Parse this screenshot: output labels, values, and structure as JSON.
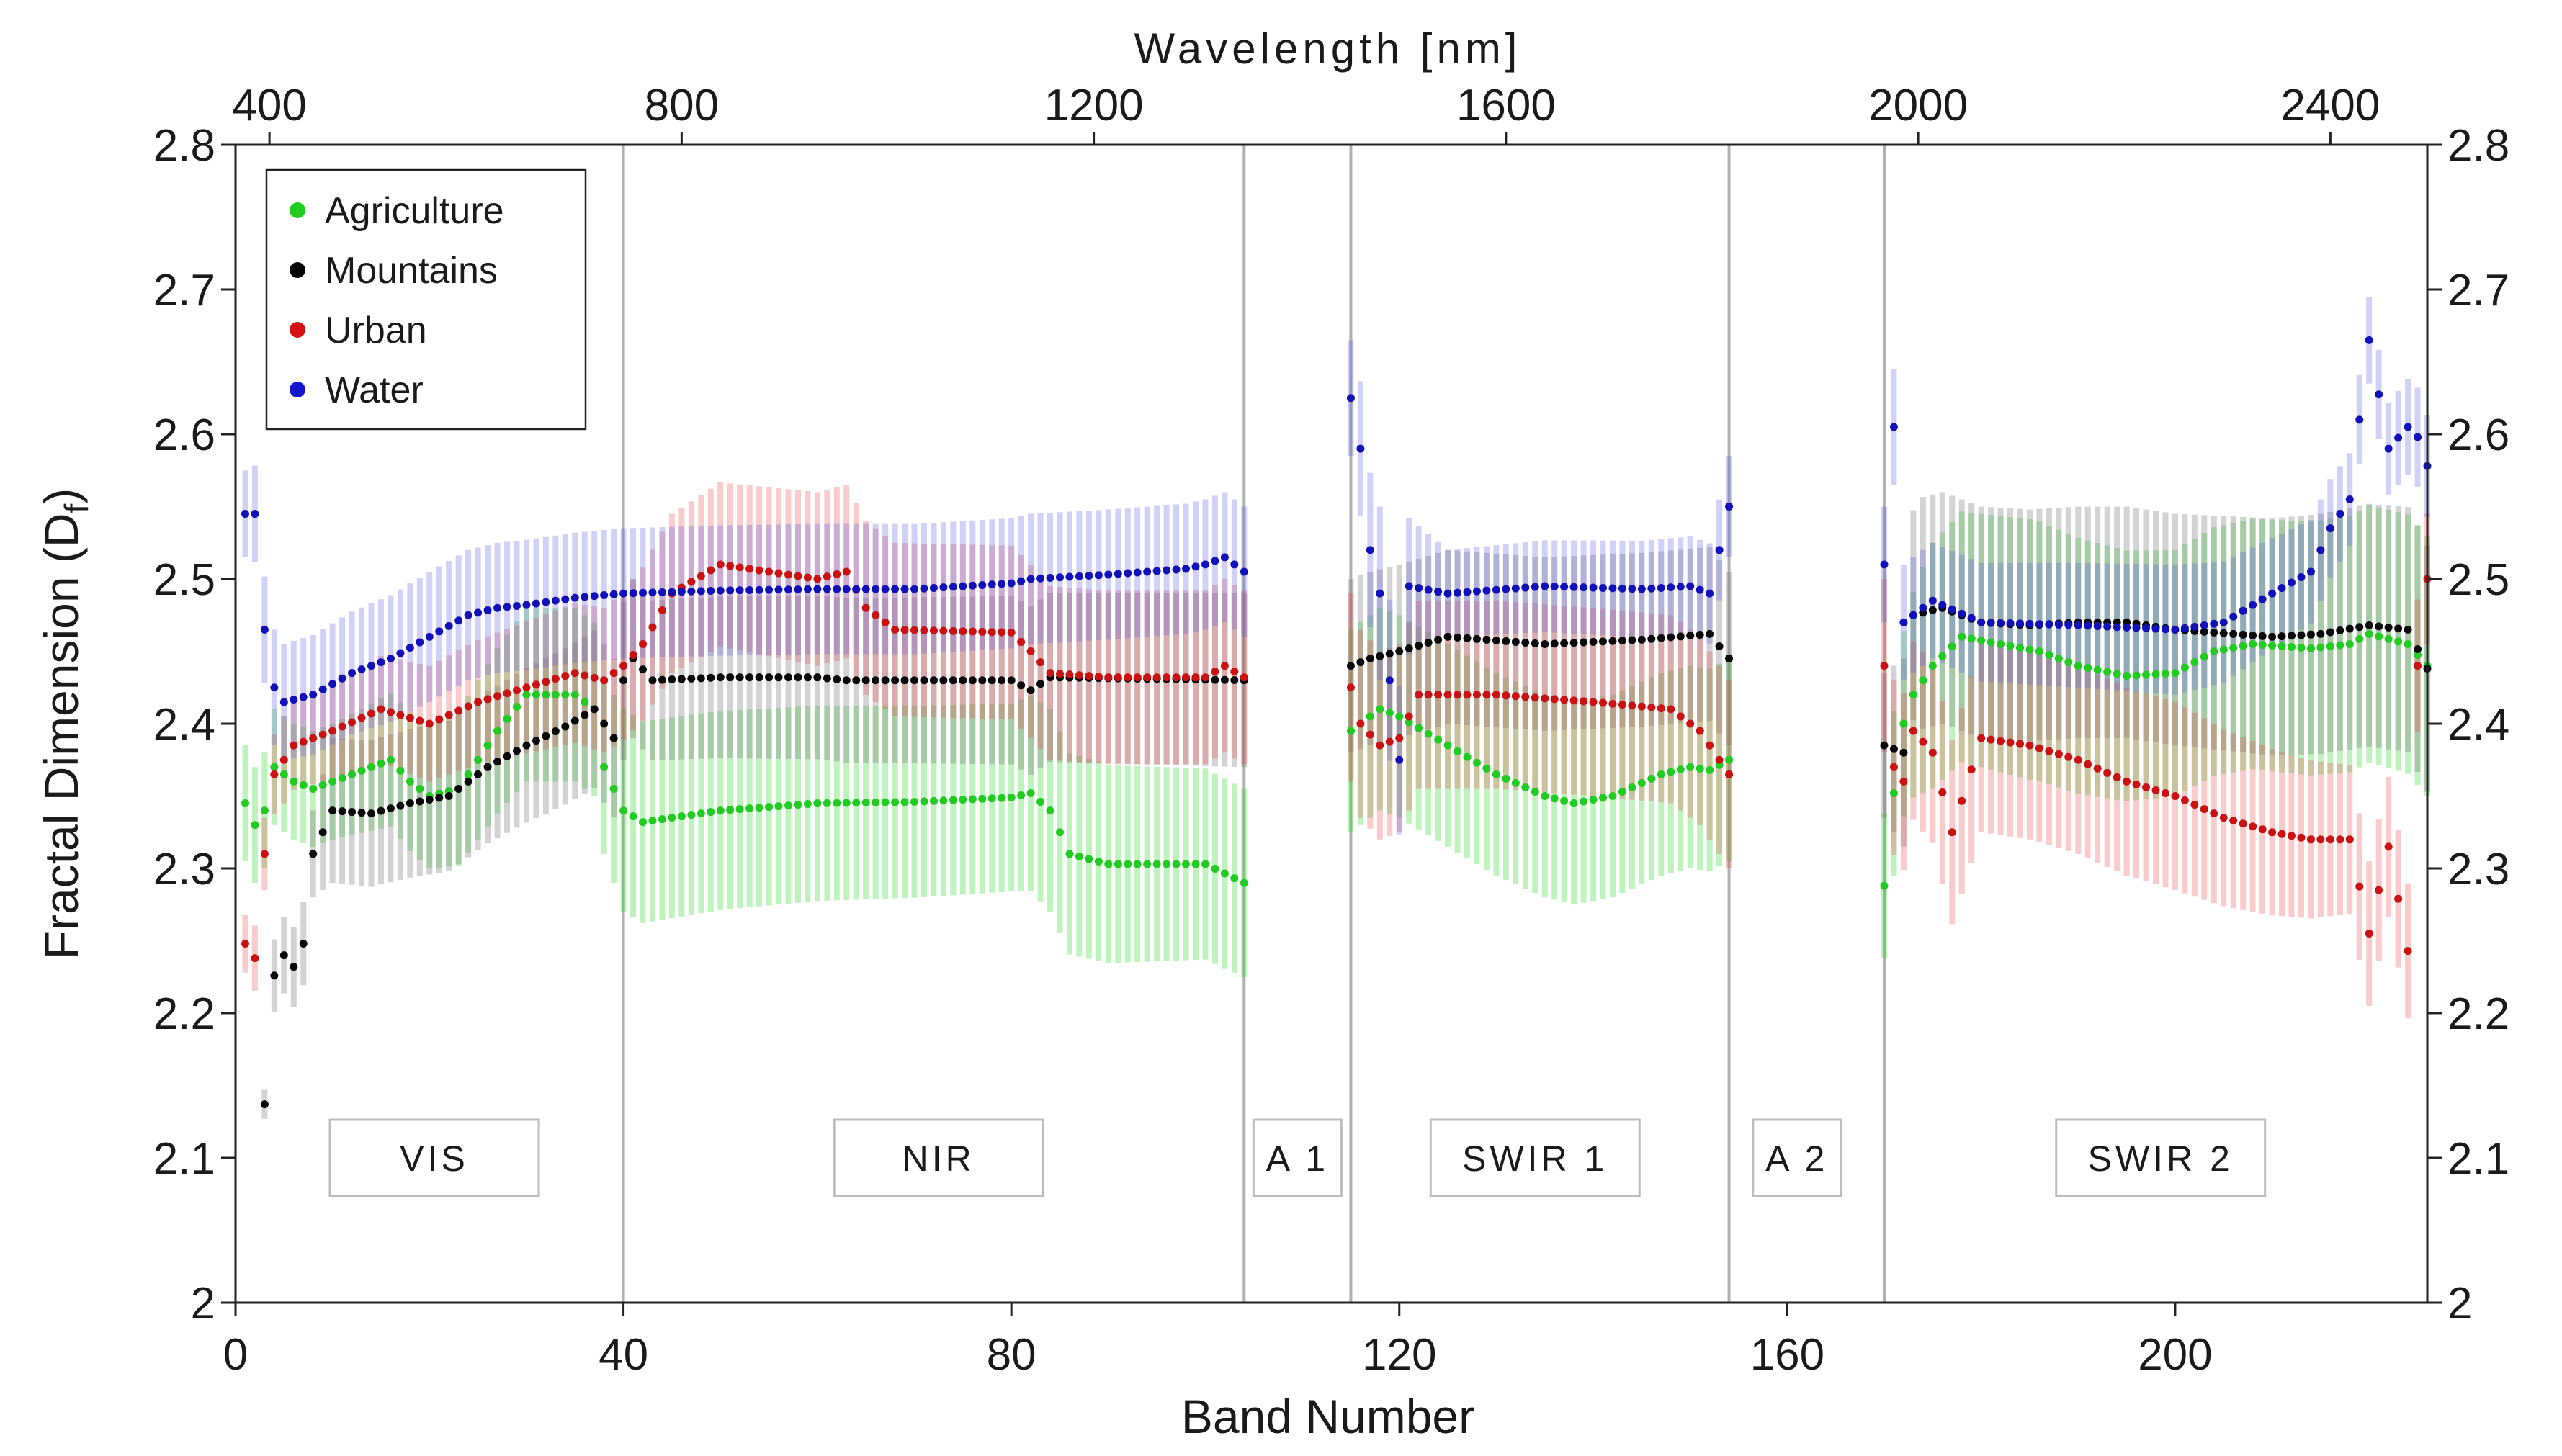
{
  "chart_data": {
    "type": "scatter",
    "title": "",
    "top_axis_title": "Wavelength [nm]",
    "xlabel": "Band Number",
    "ylabel_main": "Fractal Dimension (D",
    "ylabel_sub": "f",
    "ylabel_end": ")",
    "xlim": [
      0,
      226
    ],
    "ylim": [
      2.0,
      2.8
    ],
    "x_ticks": [
      {
        "value": 0,
        "label": "0"
      },
      {
        "value": 40,
        "label": "40"
      },
      {
        "value": 80,
        "label": "80"
      },
      {
        "value": 120,
        "label": "120"
      },
      {
        "value": 160,
        "label": "160"
      },
      {
        "value": 200,
        "label": "200"
      }
    ],
    "y_ticks": [
      {
        "value": 2.0,
        "label": "2"
      },
      {
        "value": 2.1,
        "label": "2.1"
      },
      {
        "value": 2.2,
        "label": "2.2"
      },
      {
        "value": 2.3,
        "label": "2.3"
      },
      {
        "value": 2.4,
        "label": "2.4"
      },
      {
        "value": 2.5,
        "label": "2.5"
      },
      {
        "value": 2.6,
        "label": "2.6"
      },
      {
        "value": 2.7,
        "label": "2.7"
      },
      {
        "value": 2.8,
        "label": "2.8"
      }
    ],
    "top_ticks": [
      {
        "band": 3.5,
        "label": "400"
      },
      {
        "band": 46,
        "label": "800"
      },
      {
        "band": 88.5,
        "label": "1200"
      },
      {
        "band": 131,
        "label": "1600"
      },
      {
        "band": 173.5,
        "label": "2000"
      },
      {
        "band": 216,
        "label": "2400"
      }
    ],
    "dividers": [
      40,
      104,
      115,
      154,
      170
    ],
    "regions": [
      {
        "label": "VIS",
        "center": 20.5
      },
      {
        "label": "NIR",
        "center": 72.5
      },
      {
        "label": "A 1",
        "center": 109.5
      },
      {
        "label": "SWIR 1",
        "center": 134
      },
      {
        "label": "A 2",
        "center": 161
      },
      {
        "label": "SWIR 2",
        "center": 198.5
      }
    ],
    "legend_position": "top-left",
    "legend": [
      {
        "name": "Agriculture",
        "color": "#1fcc1f"
      },
      {
        "name": "Mountains",
        "color": "#000000"
      },
      {
        "name": "Urban",
        "color": "#d41414"
      },
      {
        "name": "Water",
        "color": "#1414cc"
      }
    ],
    "segments": [
      [
        1,
        104
      ],
      [
        115,
        154
      ],
      [
        170,
        226
      ]
    ],
    "series": [
      {
        "name": "Agriculture",
        "color": "#1fcc1f",
        "band_color": "rgba(40,215,40,0.30)",
        "marker_color": "#1fcc1f",
        "anchors": [
          [
            1,
            2.345
          ],
          [
            2,
            2.33
          ],
          [
            3,
            2.34
          ],
          [
            4,
            2.37
          ],
          [
            6,
            2.36
          ],
          [
            8,
            2.355
          ],
          [
            12,
            2.365
          ],
          [
            16,
            2.375
          ],
          [
            18,
            2.36
          ],
          [
            20,
            2.35
          ],
          [
            23,
            2.355
          ],
          [
            27,
            2.395
          ],
          [
            30,
            2.42
          ],
          [
            35,
            2.42
          ],
          [
            37,
            2.41
          ],
          [
            38,
            2.37
          ],
          [
            40,
            2.34
          ],
          [
            42,
            2.332
          ],
          [
            50,
            2.34
          ],
          [
            60,
            2.345
          ],
          [
            70,
            2.346
          ],
          [
            80,
            2.349
          ],
          [
            82,
            2.352
          ],
          [
            84,
            2.34
          ],
          [
            86,
            2.31
          ],
          [
            90,
            2.303
          ],
          [
            100,
            2.303
          ],
          [
            104,
            2.29
          ],
          [
            115,
            2.395
          ],
          [
            118,
            2.41
          ],
          [
            120,
            2.405
          ],
          [
            125,
            2.385
          ],
          [
            130,
            2.365
          ],
          [
            135,
            2.35
          ],
          [
            138,
            2.345
          ],
          [
            142,
            2.35
          ],
          [
            147,
            2.365
          ],
          [
            150,
            2.37
          ],
          [
            152,
            2.368
          ],
          [
            154,
            2.375
          ],
          [
            170,
            2.288
          ],
          [
            171,
            2.352
          ],
          [
            172,
            2.4
          ],
          [
            173,
            2.42
          ],
          [
            175,
            2.44
          ],
          [
            178,
            2.46
          ],
          [
            182,
            2.455
          ],
          [
            186,
            2.45
          ],
          [
            190,
            2.44
          ],
          [
            195,
            2.433
          ],
          [
            200,
            2.435
          ],
          [
            204,
            2.45
          ],
          [
            208,
            2.455
          ],
          [
            214,
            2.452
          ],
          [
            218,
            2.455
          ],
          [
            220,
            2.462
          ],
          [
            224,
            2.455
          ],
          [
            226,
            2.44
          ]
        ],
        "err_anchors": [
          [
            1,
            0.04
          ],
          [
            10,
            0.04
          ],
          [
            30,
            0.06
          ],
          [
            38,
            0.06
          ],
          [
            40,
            0.07
          ],
          [
            80,
            0.065
          ],
          [
            84,
            0.07
          ],
          [
            104,
            0.065
          ],
          [
            115,
            0.07
          ],
          [
            135,
            0.07
          ],
          [
            154,
            0.07
          ],
          [
            170,
            0.05
          ],
          [
            175,
            0.085
          ],
          [
            185,
            0.09
          ],
          [
            200,
            0.085
          ],
          [
            226,
            0.09
          ]
        ]
      },
      {
        "name": "Mountains",
        "color": "#000000",
        "band_color": "rgba(110,110,110,0.30)",
        "marker_color": "#0a0a0a",
        "anchors": [
          [
            3,
            2.137
          ],
          [
            4,
            2.226
          ],
          [
            5,
            2.24
          ],
          [
            6,
            2.232
          ],
          [
            7,
            2.248
          ],
          [
            8,
            2.31
          ],
          [
            10,
            2.34
          ],
          [
            14,
            2.338
          ],
          [
            18,
            2.345
          ],
          [
            22,
            2.35
          ],
          [
            26,
            2.37
          ],
          [
            30,
            2.385
          ],
          [
            34,
            2.398
          ],
          [
            37,
            2.41
          ],
          [
            39,
            2.39
          ],
          [
            40,
            2.43
          ],
          [
            41,
            2.445
          ],
          [
            43,
            2.43
          ],
          [
            50,
            2.432
          ],
          [
            60,
            2.432
          ],
          [
            63,
            2.43
          ],
          [
            68,
            2.43
          ],
          [
            80,
            2.43
          ],
          [
            82,
            2.423
          ],
          [
            84,
            2.432
          ],
          [
            104,
            2.43
          ],
          [
            115,
            2.44
          ],
          [
            117,
            2.445
          ],
          [
            120,
            2.45
          ],
          [
            125,
            2.46
          ],
          [
            135,
            2.455
          ],
          [
            145,
            2.458
          ],
          [
            152,
            2.462
          ],
          [
            154,
            2.445
          ],
          [
            170,
            2.385
          ],
          [
            172,
            2.38
          ],
          [
            173,
            2.475
          ],
          [
            176,
            2.48
          ],
          [
            180,
            2.47
          ],
          [
            185,
            2.468
          ],
          [
            190,
            2.47
          ],
          [
            195,
            2.47
          ],
          [
            200,
            2.465
          ],
          [
            210,
            2.46
          ],
          [
            215,
            2.462
          ],
          [
            220,
            2.468
          ],
          [
            224,
            2.465
          ],
          [
            226,
            2.438
          ]
        ],
        "err_anchors": [
          [
            3,
            0.01
          ],
          [
            4,
            0.025
          ],
          [
            8,
            0.03
          ],
          [
            10,
            0.05
          ],
          [
            40,
            0.055
          ],
          [
            104,
            0.06
          ],
          [
            115,
            0.06
          ],
          [
            154,
            0.06
          ],
          [
            170,
            0.05
          ],
          [
            174,
            0.08
          ],
          [
            200,
            0.08
          ],
          [
            226,
            0.085
          ]
        ]
      },
      {
        "name": "Urban",
        "color": "#d41414",
        "band_color": "rgba(235,70,70,0.28)",
        "marker_color": "#cc1111",
        "anchors": [
          [
            1,
            2.248
          ],
          [
            2,
            2.238
          ],
          [
            3,
            2.31
          ],
          [
            4,
            2.365
          ],
          [
            6,
            2.385
          ],
          [
            10,
            2.395
          ],
          [
            15,
            2.41
          ],
          [
            20,
            2.4
          ],
          [
            25,
            2.415
          ],
          [
            30,
            2.425
          ],
          [
            35,
            2.435
          ],
          [
            38,
            2.43
          ],
          [
            40,
            2.44
          ],
          [
            42,
            2.455
          ],
          [
            45,
            2.49
          ],
          [
            50,
            2.51
          ],
          [
            55,
            2.505
          ],
          [
            60,
            2.5
          ],
          [
            63,
            2.505
          ],
          [
            65,
            2.48
          ],
          [
            68,
            2.465
          ],
          [
            80,
            2.463
          ],
          [
            82,
            2.45
          ],
          [
            84,
            2.435
          ],
          [
            90,
            2.432
          ],
          [
            100,
            2.432
          ],
          [
            102,
            2.44
          ],
          [
            104,
            2.432
          ],
          [
            115,
            2.425
          ],
          [
            116,
            2.4
          ],
          [
            118,
            2.385
          ],
          [
            120,
            2.39
          ],
          [
            122,
            2.42
          ],
          [
            130,
            2.42
          ],
          [
            140,
            2.415
          ],
          [
            148,
            2.41
          ],
          [
            151,
            2.395
          ],
          [
            153,
            2.375
          ],
          [
            154,
            2.365
          ],
          [
            170,
            2.44
          ],
          [
            171,
            2.37
          ],
          [
            172,
            2.36
          ],
          [
            173,
            2.395
          ],
          [
            175,
            2.38
          ],
          [
            177,
            2.325
          ],
          [
            180,
            2.39
          ],
          [
            185,
            2.385
          ],
          [
            190,
            2.375
          ],
          [
            195,
            2.36
          ],
          [
            200,
            2.35
          ],
          [
            205,
            2.335
          ],
          [
            210,
            2.325
          ],
          [
            214,
            2.32
          ],
          [
            218,
            2.32
          ],
          [
            220,
            2.255
          ],
          [
            222,
            2.315
          ],
          [
            224,
            2.243
          ],
          [
            225,
            2.44
          ],
          [
            226,
            2.5
          ]
        ],
        "err_anchors": [
          [
            1,
            0.02
          ],
          [
            3,
            0.025
          ],
          [
            5,
            0.03
          ],
          [
            20,
            0.04
          ],
          [
            38,
            0.05
          ],
          [
            45,
            0.055
          ],
          [
            60,
            0.06
          ],
          [
            104,
            0.06
          ],
          [
            115,
            0.065
          ],
          [
            154,
            0.065
          ],
          [
            170,
            0.06
          ],
          [
            180,
            0.065
          ],
          [
            200,
            0.065
          ],
          [
            220,
            0.05
          ],
          [
            226,
            0.045
          ]
        ]
      },
      {
        "name": "Water",
        "color": "#1414cc",
        "band_color": "rgba(90,90,230,0.28)",
        "marker_color": "#1111bb",
        "anchors": [
          [
            1,
            2.545
          ],
          [
            2,
            2.545
          ],
          [
            3,
            2.465
          ],
          [
            4,
            2.425
          ],
          [
            5,
            2.415
          ],
          [
            8,
            2.42
          ],
          [
            12,
            2.435
          ],
          [
            16,
            2.445
          ],
          [
            20,
            2.46
          ],
          [
            24,
            2.475
          ],
          [
            27,
            2.48
          ],
          [
            30,
            2.482
          ],
          [
            35,
            2.487
          ],
          [
            40,
            2.49
          ],
          [
            50,
            2.492
          ],
          [
            60,
            2.493
          ],
          [
            70,
            2.493
          ],
          [
            80,
            2.497
          ],
          [
            82,
            2.5
          ],
          [
            90,
            2.503
          ],
          [
            98,
            2.507
          ],
          [
            100,
            2.51
          ],
          [
            102,
            2.515
          ],
          [
            104,
            2.505
          ],
          [
            115,
            2.625
          ],
          [
            116,
            2.59
          ],
          [
            117,
            2.52
          ],
          [
            118,
            2.49
          ],
          [
            119,
            2.43
          ],
          [
            120,
            2.375
          ],
          [
            121,
            2.495
          ],
          [
            125,
            2.49
          ],
          [
            135,
            2.495
          ],
          [
            145,
            2.493
          ],
          [
            150,
            2.495
          ],
          [
            152,
            2.49
          ],
          [
            154,
            2.55
          ],
          [
            170,
            2.51
          ],
          [
            171,
            2.605
          ],
          [
            172,
            2.47
          ],
          [
            175,
            2.485
          ],
          [
            180,
            2.47
          ],
          [
            190,
            2.468
          ],
          [
            200,
            2.465
          ],
          [
            205,
            2.47
          ],
          [
            210,
            2.49
          ],
          [
            214,
            2.505
          ],
          [
            216,
            2.535
          ],
          [
            218,
            2.555
          ],
          [
            220,
            2.665
          ],
          [
            222,
            2.59
          ],
          [
            224,
            2.605
          ],
          [
            225,
            2.598
          ],
          [
            226,
            2.578
          ]
        ],
        "err_anchors": [
          [
            1,
            0.03
          ],
          [
            4,
            0.04
          ],
          [
            20,
            0.045
          ],
          [
            40,
            0.045
          ],
          [
            104,
            0.045
          ],
          [
            115,
            0.04
          ],
          [
            118,
            0.06
          ],
          [
            125,
            0.03
          ],
          [
            154,
            0.035
          ],
          [
            170,
            0.04
          ],
          [
            175,
            0.04
          ],
          [
            200,
            0.045
          ],
          [
            215,
            0.035
          ],
          [
            220,
            0.03
          ],
          [
            226,
            0.035
          ]
        ]
      }
    ]
  }
}
